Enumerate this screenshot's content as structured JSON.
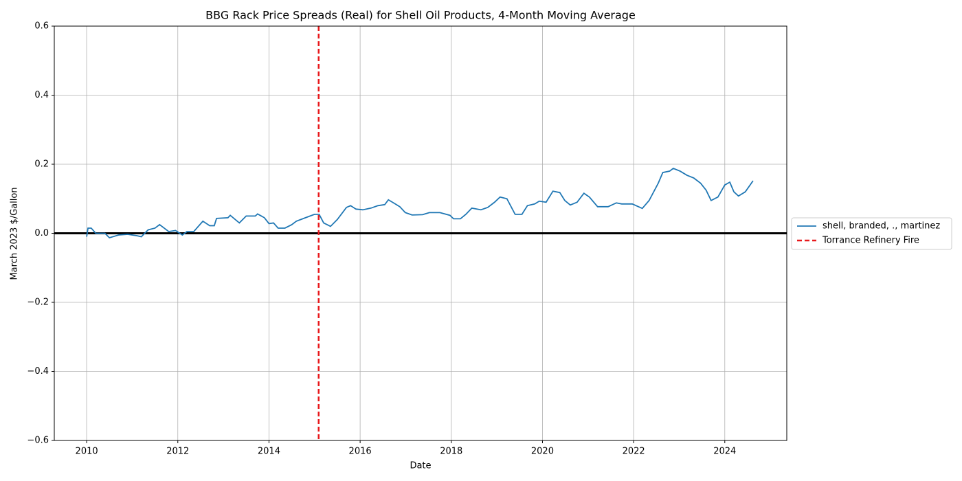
{
  "chart_data": {
    "type": "line",
    "title": "BBG Rack Price Spreads (Real) for Shell Oil Products, 4-Month Moving Average",
    "xlabel": "Date",
    "ylabel": "March 2023 $/Gallon",
    "xlim": [
      2009.29,
      2025.36
    ],
    "xticks": [
      2010,
      2012,
      2014,
      2016,
      2018,
      2020,
      2022,
      2024
    ],
    "ylim": [
      -0.6,
      0.6
    ],
    "yticks": [
      {
        "value": -0.6,
        "label": "−0.6"
      },
      {
        "value": -0.4,
        "label": "−0.4"
      },
      {
        "value": -0.2,
        "label": "−0.2"
      },
      {
        "value": 0,
        "label": "0.0"
      },
      0.2,
      0.4,
      0.6
    ],
    "grid": true,
    "legend": "center right outside",
    "series": [
      {
        "name": "shell, branded, ., martinez",
        "color": "#1f77b4",
        "x": [
          2010.0,
          2010.03,
          2010.1,
          2010.2,
          2010.4,
          2010.5,
          2010.7,
          2010.9,
          2011.1,
          2011.2,
          2011.35,
          2011.5,
          2011.6,
          2011.8,
          2011.95,
          2012.1,
          2012.2,
          2012.35,
          2012.55,
          2012.7,
          2012.8,
          2012.85,
          2013.1,
          2013.15,
          2013.35,
          2013.5,
          2013.7,
          2013.75,
          2013.9,
          2014.0,
          2014.1,
          2014.2,
          2014.35,
          2014.5,
          2014.6,
          2014.8,
          2015.0,
          2015.1,
          2015.2,
          2015.35,
          2015.5,
          2015.7,
          2015.79,
          2015.91,
          2016.06,
          2016.24,
          2016.39,
          2016.54,
          2016.62,
          2016.77,
          2016.87,
          2016.99,
          2017.14,
          2017.37,
          2017.52,
          2017.75,
          2017.97,
          2018.05,
          2018.2,
          2018.32,
          2018.45,
          2018.65,
          2018.8,
          2018.95,
          2019.07,
          2019.22,
          2019.4,
          2019.55,
          2019.67,
          2019.83,
          2019.93,
          2020.08,
          2020.23,
          2020.38,
          2020.49,
          2020.61,
          2020.76,
          2020.91,
          2021.03,
          2021.21,
          2021.44,
          2021.62,
          2021.74,
          2021.97,
          2022.19,
          2022.34,
          2022.54,
          2022.64,
          2022.79,
          2022.87,
          2023.02,
          2023.17,
          2023.32,
          2023.47,
          2023.59,
          2023.7,
          2023.85,
          2024.0,
          2024.11,
          2024.2,
          2024.3,
          2024.45,
          2024.62
        ],
        "values": [
          -0.01,
          0.015,
          0.015,
          0.0,
          0.0,
          -0.013,
          -0.005,
          -0.003,
          -0.007,
          -0.01,
          0.01,
          0.015,
          0.025,
          0.005,
          0.008,
          -0.005,
          0.005,
          0.005,
          0.035,
          0.022,
          0.022,
          0.043,
          0.045,
          0.052,
          0.03,
          0.05,
          0.05,
          0.056,
          0.045,
          0.028,
          0.03,
          0.015,
          0.015,
          0.025,
          0.035,
          0.045,
          0.055,
          0.055,
          0.03,
          0.02,
          0.04,
          0.075,
          0.08,
          0.07,
          0.068,
          0.073,
          0.08,
          0.083,
          0.097,
          0.085,
          0.077,
          0.06,
          0.053,
          0.054,
          0.06,
          0.06,
          0.052,
          0.042,
          0.042,
          0.055,
          0.073,
          0.068,
          0.075,
          0.09,
          0.105,
          0.1,
          0.055,
          0.055,
          0.08,
          0.085,
          0.093,
          0.09,
          0.122,
          0.118,
          0.095,
          0.082,
          0.09,
          0.116,
          0.105,
          0.077,
          0.077,
          0.088,
          0.085,
          0.085,
          0.072,
          0.095,
          0.145,
          0.176,
          0.18,
          0.188,
          0.18,
          0.168,
          0.16,
          0.145,
          0.125,
          0.095,
          0.105,
          0.14,
          0.148,
          0.12,
          0.108,
          0.12,
          0.152
        ]
      }
    ],
    "vlines": [
      {
        "x": 2015.09,
        "label": "Torrance Refinery Fire",
        "color": "#e8191c"
      }
    ],
    "hlines": [
      {
        "y": 0,
        "color": "#000000"
      }
    ]
  }
}
